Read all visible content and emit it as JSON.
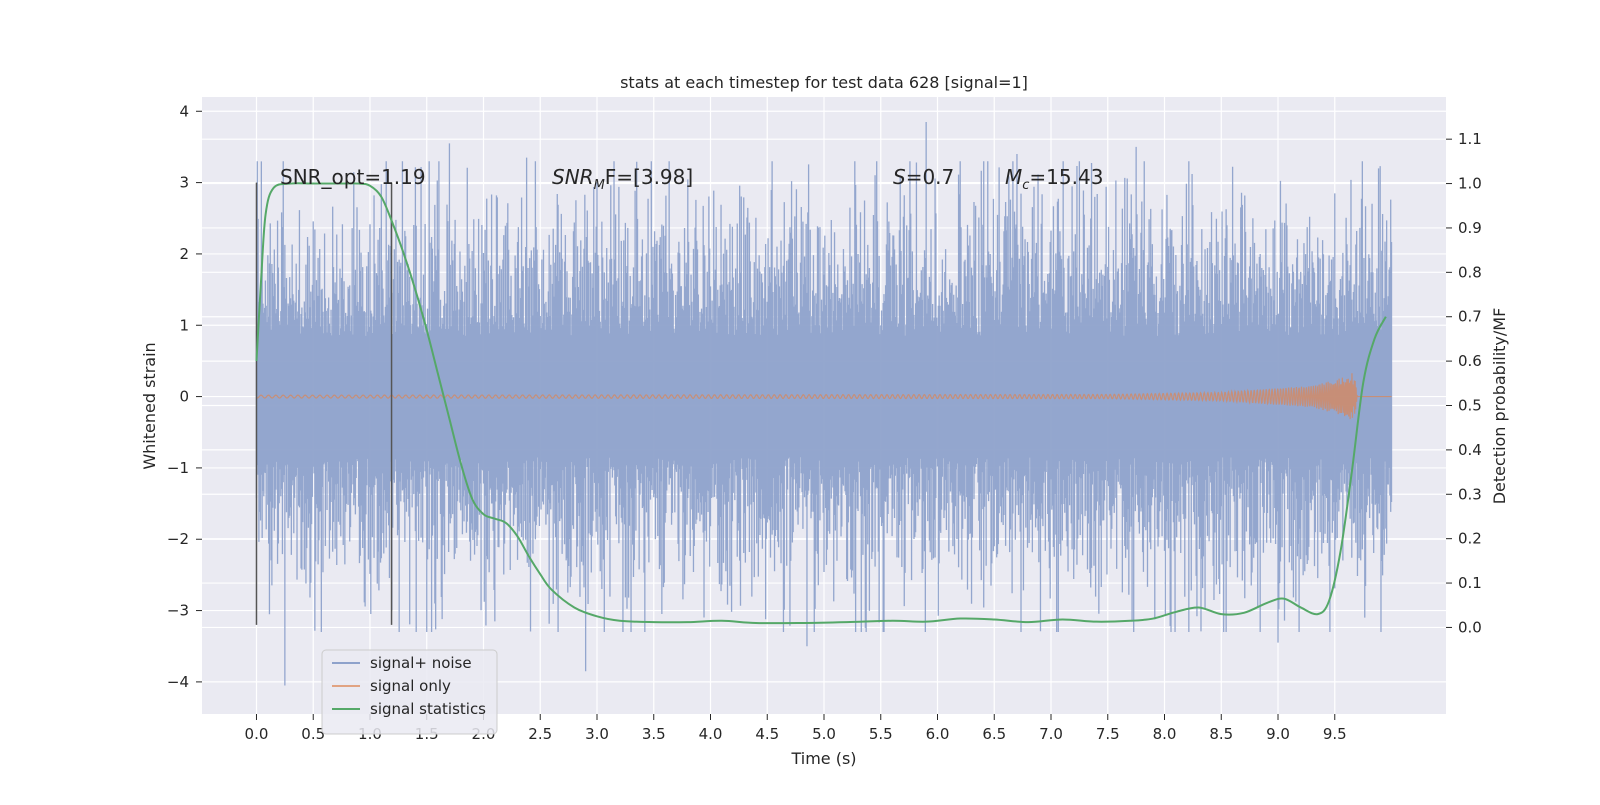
{
  "chart_data": {
    "type": "line",
    "title": "stats at each timestep for test data 628 [signal=1]",
    "xlabel": "Time (s)",
    "ylabel": "Whitened strain",
    "y2label": "Detection probability/MF",
    "xlim": [
      -0.48,
      10.48
    ],
    "ylim": [
      -4.45,
      4.2
    ],
    "y2lim": [
      -0.195,
      1.195
    ],
    "xticks": [
      "0.0",
      "0.5",
      "1.0",
      "1.5",
      "2.0",
      "2.5",
      "3.0",
      "3.5",
      "4.0",
      "4.5",
      "5.0",
      "5.5",
      "6.0",
      "6.5",
      "7.0",
      "7.5",
      "8.0",
      "8.5",
      "9.0",
      "9.5"
    ],
    "yticks": [
      "−4",
      "−3",
      "−2",
      "−1",
      "0",
      "1",
      "2",
      "3",
      "4"
    ],
    "y2ticks": [
      "0.0",
      "0.1",
      "0.2",
      "0.3",
      "0.4",
      "0.5",
      "0.6",
      "0.7",
      "0.8",
      "0.9",
      "1.0",
      "1.1"
    ],
    "grid": true,
    "legend_placement": "lower-left",
    "colors": {
      "noise": "#8ea2cb",
      "signal": "#dd8452",
      "stats": "#55a868",
      "vline": "#555555",
      "plot_bg": "#eaeaf2",
      "grid": "#ffffff"
    },
    "annotations": {
      "snr_opt": "SNR_opt=1.19",
      "snr_mf_prefix": "SNR",
      "snr_mf_sub": "M",
      "snr_mf_suffix": "F=[3.98]",
      "s_label": "S",
      "s_value": "=0.7",
      "mc_label": "M",
      "mc_sub": "c",
      "mc_value": "=15.43"
    },
    "vertical_lines_x": [
      0.0,
      1.19
    ],
    "series": [
      {
        "name": "signal+ noise",
        "description": "dense Gaussian noise trace, amplitude roughly ±1.2 core with spikes up to about ±4",
        "x_range": [
          0.0,
          10.0
        ],
        "envelope_y": [
          -2.0,
          2.0
        ],
        "extreme_spikes": [
          {
            "x": 0.25,
            "y": -4.05
          },
          {
            "x": 1.7,
            "y": 3.55
          },
          {
            "x": 2.9,
            "y": -3.85
          },
          {
            "x": 5.9,
            "y": 3.85
          },
          {
            "x": 4.85,
            "y": -3.5
          },
          {
            "x": 9.0,
            "y": -3.45
          },
          {
            "x": 2.38,
            "y": 3.35
          },
          {
            "x": 6.7,
            "y": 3.4
          },
          {
            "x": 7.75,
            "y": 3.5
          }
        ]
      },
      {
        "name": "signal only",
        "description": "chirp signal near zero that grows toward merger",
        "x_range": [
          0.0,
          9.7
        ],
        "amplitude_envelope": [
          [
            0.0,
            0.02
          ],
          [
            7.5,
            0.03
          ],
          [
            8.5,
            0.06
          ],
          [
            9.3,
            0.15
          ],
          [
            9.6,
            0.28
          ],
          [
            9.67,
            0.35
          ],
          [
            9.7,
            0.0
          ]
        ]
      },
      {
        "name": "signal statistics",
        "axis": "right",
        "x": [
          0.0,
          0.04,
          0.08,
          0.15,
          0.3,
          0.5,
          0.7,
          0.9,
          1.0,
          1.1,
          1.2,
          1.3,
          1.4,
          1.5,
          1.6,
          1.7,
          1.8,
          1.9,
          2.0,
          2.1,
          2.2,
          2.3,
          2.4,
          2.5,
          2.6,
          2.8,
          3.0,
          3.2,
          3.5,
          3.8,
          4.1,
          4.4,
          4.8,
          5.2,
          5.6,
          5.9,
          6.2,
          6.5,
          6.8,
          7.1,
          7.4,
          7.7,
          7.9,
          8.1,
          8.3,
          8.5,
          8.7,
          8.9,
          9.05,
          9.2,
          9.35,
          9.45,
          9.55,
          9.65,
          9.75,
          9.85,
          9.95
        ],
        "values": [
          0.6,
          0.78,
          0.93,
          0.99,
          1.0,
          1.0,
          1.0,
          1.0,
          0.995,
          0.97,
          0.91,
          0.84,
          0.76,
          0.67,
          0.57,
          0.47,
          0.37,
          0.29,
          0.255,
          0.245,
          0.235,
          0.205,
          0.16,
          0.12,
          0.085,
          0.045,
          0.025,
          0.015,
          0.012,
          0.012,
          0.015,
          0.01,
          0.01,
          0.012,
          0.015,
          0.013,
          0.02,
          0.018,
          0.012,
          0.018,
          0.013,
          0.015,
          0.02,
          0.035,
          0.045,
          0.03,
          0.033,
          0.055,
          0.065,
          0.045,
          0.03,
          0.06,
          0.17,
          0.35,
          0.55,
          0.65,
          0.7
        ]
      }
    ]
  }
}
